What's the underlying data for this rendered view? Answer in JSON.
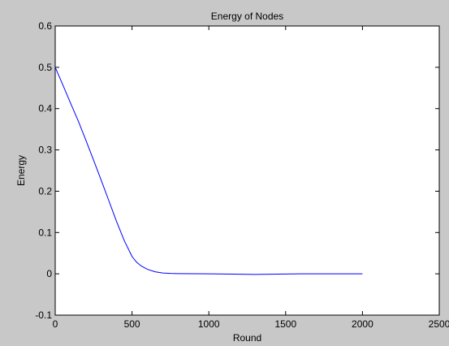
{
  "chart_data": {
    "type": "line",
    "title": "Energy of Nodes",
    "xlabel": "Round",
    "ylabel": "Energy",
    "xlim": [
      0,
      2500
    ],
    "ylim": [
      -0.1,
      0.6
    ],
    "xticks": [
      0,
      500,
      1000,
      1500,
      2000,
      2500
    ],
    "yticks": [
      -0.1,
      0,
      0.1,
      0.2,
      0.3,
      0.4,
      0.5,
      0.6
    ],
    "xtick_labels": [
      "0",
      "500",
      "1000",
      "1500",
      "2000",
      "2500"
    ],
    "ytick_labels": [
      "-0.1",
      "0",
      "0.1",
      "0.2",
      "0.3",
      "0.4",
      "0.5",
      "0.6"
    ],
    "grid": false,
    "series": [
      {
        "color": "#0000ff",
        "x": [
          0,
          50,
          100,
          150,
          200,
          250,
          300,
          350,
          400,
          450,
          500,
          530,
          560,
          600,
          650,
          700,
          750,
          800,
          900,
          1000,
          1100,
          1200,
          1300,
          1400,
          1500,
          1600,
          1700,
          1800,
          1900,
          2000
        ],
        "y": [
          0.5,
          0.457,
          0.413,
          0.37,
          0.323,
          0.275,
          0.226,
          0.176,
          0.126,
          0.08,
          0.042,
          0.028,
          0.019,
          0.011,
          0.005,
          0.002,
          0.001,
          0.0005,
          0.0002,
          0.0,
          -0.0005,
          -0.001,
          -0.0015,
          -0.001,
          -0.0005,
          0.0,
          0.0,
          0.0,
          0.0,
          0.0
        ]
      }
    ]
  }
}
